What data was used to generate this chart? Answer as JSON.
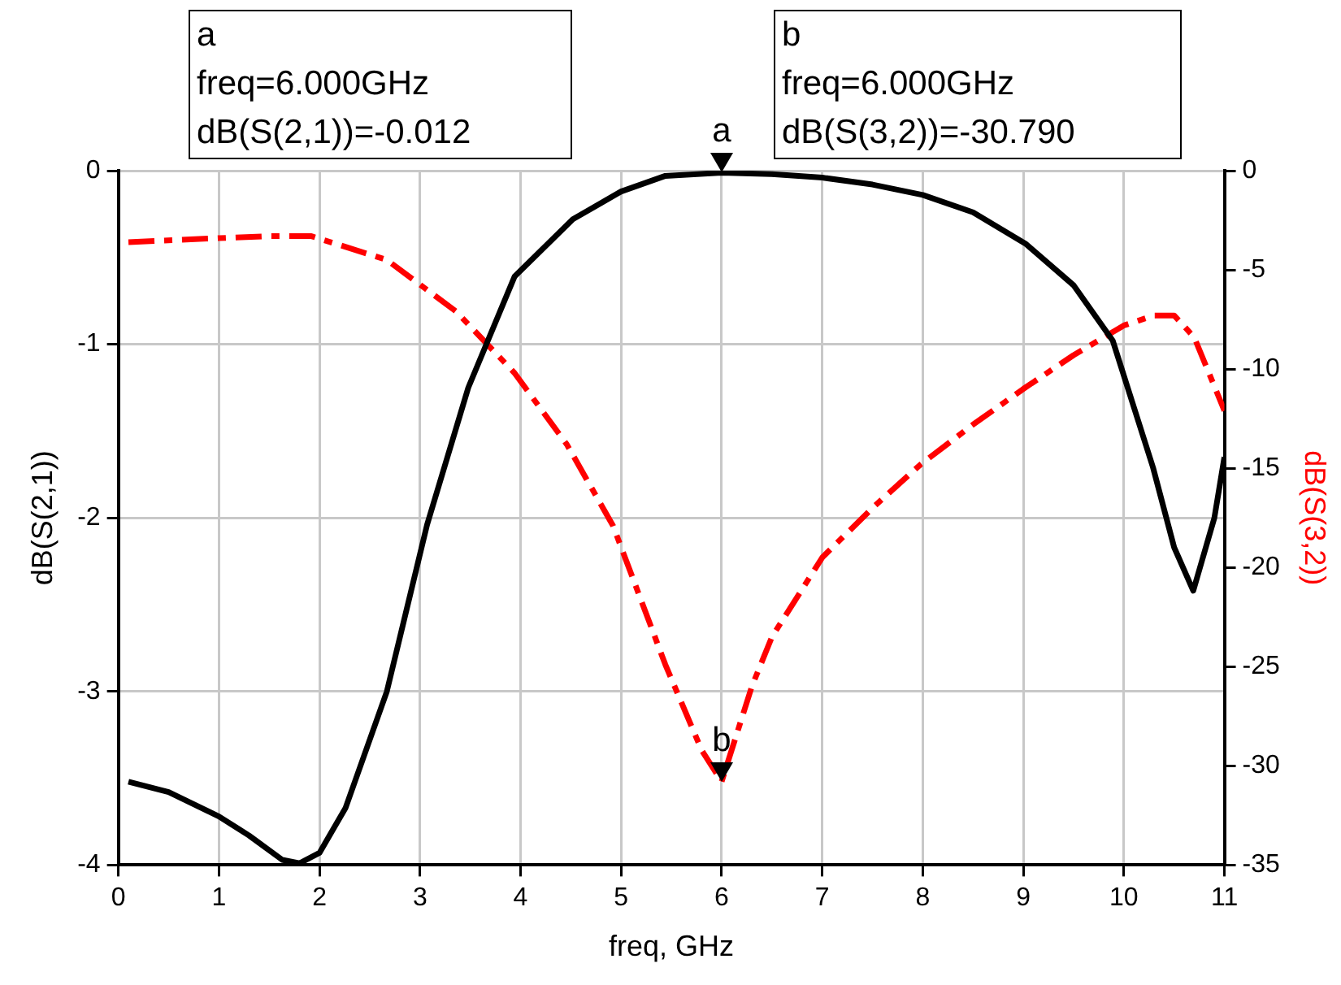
{
  "chart_data": {
    "type": "line",
    "xlabel": "freq, GHz",
    "ylabel": "dB(S(2,1))",
    "y2label": "dB(S(3,2))",
    "xlim": [
      0,
      11
    ],
    "xticks": [
      0,
      1,
      2,
      3,
      4,
      5,
      6,
      7,
      8,
      9,
      10,
      11
    ],
    "ylim": [
      -4,
      0
    ],
    "yticks": [
      -4,
      -3,
      -2,
      -1,
      0
    ],
    "y2lim": [
      -35,
      0
    ],
    "y2ticks": [
      -35,
      -30,
      -25,
      -20,
      -15,
      -10,
      -5,
      0
    ],
    "grid": true,
    "marker": "none",
    "series": [
      {
        "color": "#000000",
        "line_style": "solid",
        "x": [
          0.1,
          0.5,
          1,
          1.3,
          1.63,
          1.8,
          2,
          2.26,
          2.67,
          3.07,
          3.48,
          3.94,
          4.52,
          5,
          5.44,
          6,
          6.5,
          7,
          7.5,
          8,
          8.5,
          9.02,
          9.5,
          9.89,
          10.29,
          10.5,
          10.69,
          10.9,
          11
        ],
        "values": [
          -3.52,
          -3.58,
          -3.72,
          -3.83,
          -3.97,
          -3.99,
          -3.93,
          -3.67,
          -3.0,
          -2.04,
          -1.25,
          -0.61,
          -0.28,
          -0.12,
          -0.03,
          -0.012,
          -0.02,
          -0.04,
          -0.08,
          -0.14,
          -0.24,
          -0.42,
          -0.66,
          -0.98,
          -1.71,
          -2.17,
          -2.42,
          -2.0,
          -1.65
        ]
      },
      {
        "color": "#ff0000",
        "line_style": "dashed",
        "axis": "y2",
        "x": [
          0.1,
          1,
          1.5,
          1.92,
          2.67,
          3.36,
          3.94,
          4.46,
          4.92,
          5.44,
          5.8,
          6,
          6.3,
          6.5,
          7,
          7.5,
          7.98,
          8.5,
          9,
          9.5,
          10,
          10.3,
          10.5,
          10.7,
          11
        ],
        "values": [
          -3.6,
          -3.4,
          -3.3,
          -3.3,
          -4.5,
          -7.1,
          -10.2,
          -13.8,
          -17.9,
          -24.9,
          -29.2,
          -30.79,
          -26,
          -23.5,
          -19.5,
          -17,
          -14.8,
          -12.8,
          -11,
          -9.3,
          -7.8,
          -7.3,
          -7.3,
          -8.4,
          -12.1
        ]
      }
    ],
    "annotations": [
      "a\nfreq=6.000GHz\ndB(S(2,1))=-0.012",
      "b\nfreq=6.000GHz\ndB(S(3,2))=-30.790",
      "a",
      "b"
    ]
  }
}
